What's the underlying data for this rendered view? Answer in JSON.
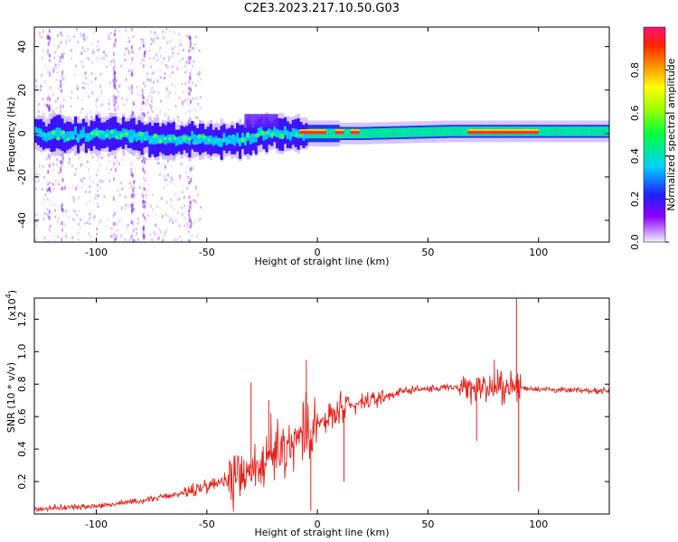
{
  "title": "C2E3.2023.217.10.50.G03",
  "chart_data": [
    {
      "type": "heatmap",
      "xlabel": "Height of straight line (km)",
      "ylabel": "Frequency (Hz)",
      "xlim": [
        -128,
        132
      ],
      "ylim": [
        -50,
        49
      ],
      "xticks": [
        -100,
        -50,
        0,
        50,
        100
      ],
      "yticks": [
        -40,
        -20,
        0,
        20,
        40
      ],
      "colorbar": {
        "label": "Normalized spectral amplitude",
        "range": [
          0,
          1
        ],
        "ticks": [
          "0.0",
          "0.2",
          "0.4",
          "0.6",
          "0.8"
        ],
        "colors": [
          "#f0f0ff",
          "#8a00ff",
          "#2020ff",
          "#00d0ff",
          "#00ff40",
          "#a0ff00",
          "#ffff00",
          "#ff9000",
          "#ff2000",
          "#ff1080"
        ]
      },
      "ridge": [
        {
          "x": -128,
          "f": 0
        },
        {
          "x": -110,
          "f": -1
        },
        {
          "x": -90,
          "f": 0
        },
        {
          "x": -70,
          "f": -3
        },
        {
          "x": -50,
          "f": -3
        },
        {
          "x": -35,
          "f": -3
        },
        {
          "x": -25,
          "f": 0
        },
        {
          "x": -15,
          "f": 0
        },
        {
          "x": -5,
          "f": 0
        },
        {
          "x": 0,
          "f": 0
        },
        {
          "x": 20,
          "f": 0
        },
        {
          "x": 60,
          "f": 1
        },
        {
          "x": 100,
          "f": 1
        },
        {
          "x": 132,
          "f": 1
        }
      ]
    },
    {
      "type": "line",
      "xlabel": "Height of straight line (km)",
      "ylabel": "SNR (10 * v/v)",
      "multiplier": "(x10",
      "multiplier_exp": "4",
      "xlim": [
        -128,
        132
      ],
      "ylim": [
        0,
        1.33
      ],
      "xticks": [
        -100,
        -50,
        0,
        50,
        100
      ],
      "yticks": [
        0.2,
        0.4,
        0.6,
        0.8,
        1.0,
        1.2
      ],
      "color": "#e8201a",
      "baseline": [
        {
          "x": -128,
          "y": 0.03
        },
        {
          "x": -100,
          "y": 0.05
        },
        {
          "x": -80,
          "y": 0.08
        },
        {
          "x": -60,
          "y": 0.13
        },
        {
          "x": -40,
          "y": 0.22
        },
        {
          "x": -30,
          "y": 0.28
        },
        {
          "x": -20,
          "y": 0.35
        },
        {
          "x": -10,
          "y": 0.45
        },
        {
          "x": 0,
          "y": 0.55
        },
        {
          "x": 10,
          "y": 0.62
        },
        {
          "x": 20,
          "y": 0.68
        },
        {
          "x": 30,
          "y": 0.72
        },
        {
          "x": 40,
          "y": 0.76
        },
        {
          "x": 50,
          "y": 0.77
        },
        {
          "x": 60,
          "y": 0.78
        },
        {
          "x": 70,
          "y": 0.78
        },
        {
          "x": 80,
          "y": 0.78
        },
        {
          "x": 90,
          "y": 0.78
        },
        {
          "x": 100,
          "y": 0.77
        },
        {
          "x": 115,
          "y": 0.76
        },
        {
          "x": 132,
          "y": 0.76
        }
      ],
      "spikes": [
        {
          "x": -30,
          "y": 0.81
        },
        {
          "x": -22,
          "y": 0.7
        },
        {
          "x": -5,
          "y": 0.95
        },
        {
          "x": -3,
          "y": 0.02
        },
        {
          "x": 12,
          "y": 0.2
        },
        {
          "x": 66,
          "y": 0.85
        },
        {
          "x": 72,
          "y": 0.45
        },
        {
          "x": 80,
          "y": 0.95
        },
        {
          "x": 90,
          "y": 1.33
        },
        {
          "x": 91,
          "y": 0.14
        }
      ]
    }
  ]
}
